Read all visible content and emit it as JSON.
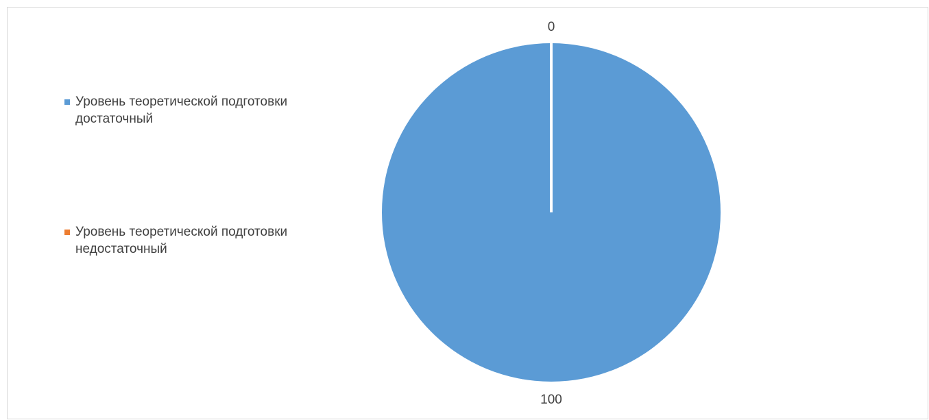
{
  "chart_data": {
    "type": "pie",
    "title": "",
    "categories": [
      "Уровень теоретической подготовки достаточный",
      "Уровень теоретической подготовки недостаточный"
    ],
    "values": [
      100,
      0
    ],
    "data_labels": [
      "100",
      "0"
    ],
    "colors": [
      "#5b9bd5",
      "#ed7d31"
    ],
    "legend_position": "left"
  },
  "legend": {
    "items": [
      {
        "label": "Уровень теоретической подготовки достаточный",
        "color": "#5b9bd5"
      },
      {
        "label": "Уровень теоретической подготовки недостаточный",
        "color": "#ed7d31"
      }
    ]
  }
}
